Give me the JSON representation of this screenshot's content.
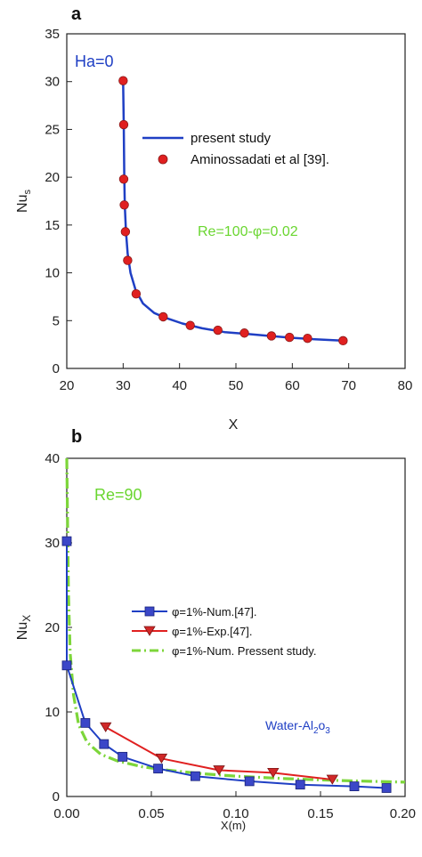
{
  "chart_data": [
    {
      "panel": "a",
      "type": "line",
      "xlabel": "X",
      "ylabel": "Nu",
      "ylabel_sub": "s",
      "xlim": [
        20,
        80
      ],
      "ylim": [
        0,
        35
      ],
      "xticks": [
        20,
        30,
        40,
        50,
        60,
        70,
        80
      ],
      "yticks": [
        0,
        5,
        10,
        15,
        20,
        25,
        30,
        35
      ],
      "annotations": {
        "ha": "Ha=0",
        "re": "Re=100-φ=0.02"
      },
      "colors": {
        "line": "#1f3fc4",
        "marker": "#e02020",
        "annotation_ha": "#1f3fc4",
        "annotation_re": "#6ad630"
      },
      "series": [
        {
          "name": "present study",
          "kind": "line",
          "x": [
            30.0,
            30.1,
            30.2,
            30.3,
            30.5,
            30.8,
            31.3,
            32.2,
            33.5,
            35.5,
            37.5,
            40.5,
            44.0,
            48.0,
            52.0,
            56.0,
            60.0,
            64.0,
            69.0
          ],
          "y": [
            30.0,
            25.5,
            20.0,
            17.0,
            14.3,
            12.0,
            10.0,
            8.2,
            6.8,
            5.8,
            5.3,
            4.7,
            4.2,
            3.8,
            3.6,
            3.4,
            3.2,
            3.05,
            2.9
          ]
        },
        {
          "name": "Aminossadati et al [39].",
          "kind": "scatter",
          "x": [
            30.0,
            30.1,
            30.1,
            30.2,
            30.4,
            30.8,
            32.3,
            37.1,
            41.9,
            46.8,
            51.5,
            56.3,
            59.5,
            62.7,
            69.0
          ],
          "y": [
            30.1,
            25.5,
            19.8,
            17.1,
            14.3,
            11.3,
            7.8,
            5.4,
            4.5,
            4.0,
            3.7,
            3.4,
            3.25,
            3.15,
            2.9
          ]
        }
      ]
    },
    {
      "panel": "b",
      "type": "line",
      "xlabel": "X(m)",
      "ylabel": "Nu",
      "ylabel_sub": "X",
      "xlim": [
        0,
        0.2
      ],
      "ylim": [
        0,
        40
      ],
      "xticks": [
        "0.00",
        "0.05",
        "0.10",
        "0.15",
        "0.20"
      ],
      "yticks": [
        0,
        10,
        20,
        30,
        40
      ],
      "annotations": {
        "re": "Re=90",
        "fluid_main": "Water-Al",
        "fluid_sub1": "2",
        "fluid_mid": "o",
        "fluid_sub2": "3"
      },
      "colors": {
        "num": "#1f3fc4",
        "exp": "#e02020",
        "present": "#7dd63a",
        "annotation_re": "#6ad630",
        "annotation_fluid": "#1f3fc4"
      },
      "series": [
        {
          "name": "φ=1%-Num.[47].",
          "kind": "line-square",
          "x": [
            0.0,
            0.0,
            0.011,
            0.022,
            0.033,
            0.054,
            0.076,
            0.108,
            0.138,
            0.17,
            0.189
          ],
          "y": [
            30.2,
            15.5,
            8.7,
            6.2,
            4.7,
            3.3,
            2.4,
            1.8,
            1.4,
            1.2,
            1.0
          ]
        },
        {
          "name": "φ=1%-Exp.[47].",
          "kind": "line-triangle",
          "x": [
            0.023,
            0.056,
            0.09,
            0.122,
            0.157
          ],
          "y": [
            8.2,
            4.5,
            3.1,
            2.8,
            2.0
          ]
        },
        {
          "name": "φ=1%-Num. Pressent study.",
          "kind": "dash",
          "x": [
            0.0,
            0.001,
            0.002,
            0.004,
            0.007,
            0.012,
            0.02,
            0.03,
            0.045,
            0.06,
            0.08,
            0.1,
            0.13,
            0.16,
            0.2
          ],
          "y": [
            40,
            24,
            17,
            12,
            8.5,
            6.4,
            5.0,
            4.2,
            3.5,
            3.1,
            2.7,
            2.4,
            2.1,
            1.9,
            1.7
          ]
        }
      ]
    }
  ]
}
